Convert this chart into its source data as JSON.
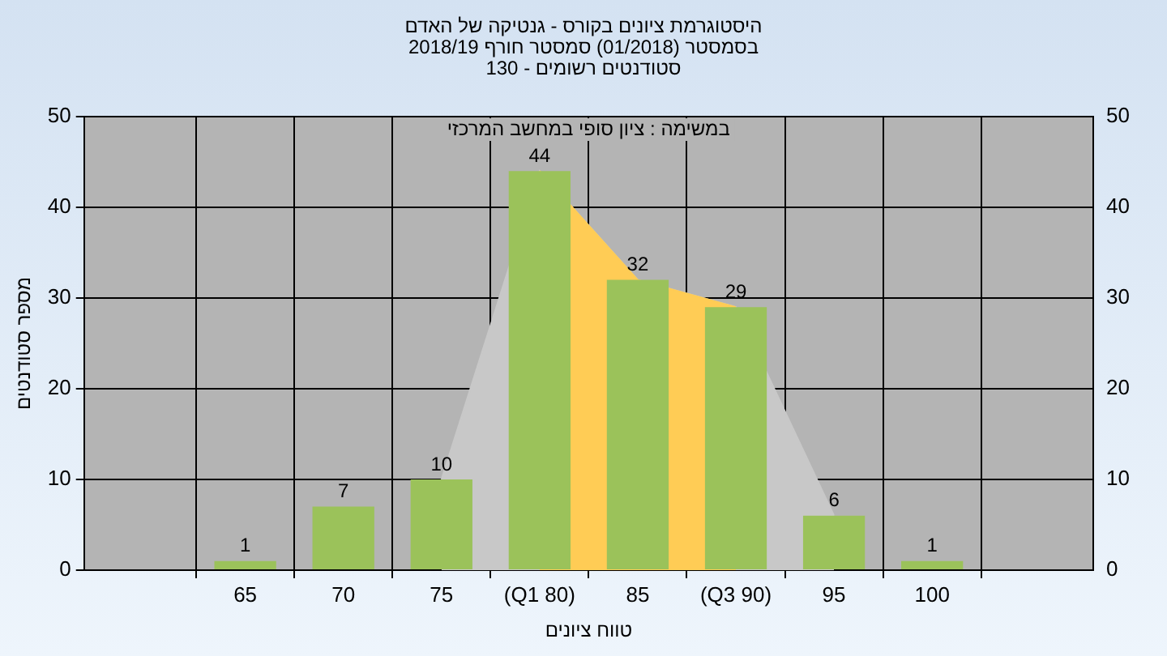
{
  "chart_data": {
    "type": "bar",
    "title": "היסטוגרמת ציונים בקורס - גנטיקה של האדם",
    "subtitle": "בסמסטר  (01/2018)  סמסטר חורף 2018/19\nסטודנטים רשומים - 130",
    "xlabel": "טווח ציונים",
    "ylabel": "מספר סטודנטים",
    "annotations": [
      "במשימה : ציון סופי במחשב המרכזי"
    ],
    "categories": [
      "65",
      "70",
      "75",
      "(Q1 80)",
      "85",
      "(Q3 90)",
      "95",
      "100"
    ],
    "series": [
      {
        "type": "area",
        "color": "#c8c8c8",
        "values": [
          null,
          null,
          10,
          44,
          32,
          29,
          6,
          null
        ]
      },
      {
        "type": "area",
        "color": "#ffcc55",
        "values": [
          null,
          null,
          null,
          44,
          32,
          29,
          null,
          null
        ]
      },
      {
        "color": "#9bc25a",
        "values": [
          1,
          7,
          10,
          44,
          32,
          29,
          6,
          1
        ],
        "value_labels": [
          "1",
          "7",
          "10",
          "44",
          "32",
          "29",
          "6",
          "1"
        ]
      }
    ],
    "ylim": [
      0,
      50
    ],
    "yticks": [
      0,
      10,
      20,
      30,
      40,
      50
    ],
    "y2lim": [
      0,
      50
    ],
    "y2ticks": [
      0,
      10,
      20,
      30,
      40,
      50
    ],
    "grid": true,
    "legend": false
  }
}
